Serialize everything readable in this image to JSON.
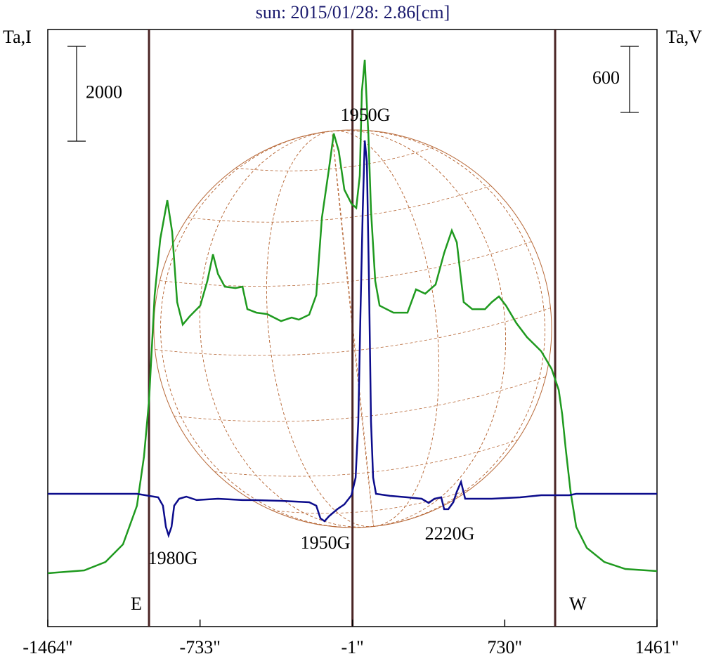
{
  "chart_data": {
    "type": "line",
    "title": "sun: 2015/01/28: 2.86[cm]",
    "y_label": "Ta,I",
    "y2_label": "Ta,V",
    "xlim": [
      -1464,
      1461
    ],
    "xticks": [
      {
        "value": -1464,
        "label": "-1464\""
      },
      {
        "value": -733,
        "label": "-733\""
      },
      {
        "value": -1,
        "label": "-1\""
      },
      {
        "value": 730,
        "label": "730\""
      },
      {
        "value": 1461,
        "label": "1461\""
      }
    ],
    "ylim": [
      0,
      12590
    ],
    "y2lim": [
      -1206,
      4217
    ],
    "scale_bars": [
      {
        "value": 2000,
        "axis": "y"
      },
      {
        "value": 600,
        "axis": "y2"
      }
    ],
    "vlines": [
      {
        "x": -978,
        "label": "E"
      },
      {
        "x": -1
      },
      {
        "x": 972,
        "label": "W"
      }
    ],
    "vline_color": "#4a2424",
    "annotations": [
      "1950G",
      "1980G",
      "1950G",
      "2220G"
    ],
    "series": [
      {
        "name": "I",
        "color": "#1f9a1f",
        "axis": "y",
        "x": [
          -1464,
          -1289,
          -1187,
          -1103,
          -1036,
          -1002,
          -978,
          -951,
          -924,
          -890,
          -867,
          -843,
          -816,
          -782,
          -732,
          -698,
          -671,
          -647,
          -614,
          -563,
          -529,
          -506,
          -462,
          -411,
          -344,
          -293,
          -259,
          -209,
          -175,
          -148,
          -114,
          -91,
          -67,
          -40,
          -6,
          17,
          34,
          44,
          58,
          68,
          75,
          88,
          108,
          129,
          196,
          263,
          304,
          348,
          398,
          439,
          476,
          500,
          533,
          574,
          635,
          668,
          702,
          736,
          786,
          837,
          905,
          955,
          989,
          1006,
          1023,
          1046,
          1073,
          1124,
          1208,
          1309,
          1461
        ],
        "values": [
          1126,
          1185,
          1363,
          1733,
          2547,
          3584,
          4769,
          6990,
          8175,
          8990,
          8323,
          6842,
          6368,
          6546,
          6768,
          7287,
          7849,
          7435,
          7168,
          7138,
          7168,
          6694,
          6620,
          6590,
          6442,
          6516,
          6472,
          6576,
          6990,
          8619,
          9656,
          10397,
          10026,
          9212,
          8916,
          8827,
          9508,
          11285,
          11952,
          10989,
          10397,
          8768,
          7287,
          6768,
          6620,
          6620,
          7109,
          7020,
          7212,
          7879,
          8353,
          8101,
          6842,
          6694,
          6694,
          6842,
          6961,
          6768,
          6398,
          6102,
          5806,
          5435,
          4991,
          4473,
          3732,
          2844,
          2103,
          1659,
          1363,
          1214,
          1170
        ]
      },
      {
        "name": "V",
        "color": "#0c0c8c",
        "axis": "y2",
        "x": [
          -1464,
          -1036,
          -978,
          -934,
          -911,
          -897,
          -884,
          -870,
          -857,
          -833,
          -799,
          -749,
          -647,
          -529,
          -479,
          -344,
          -209,
          -175,
          -155,
          -135,
          -114,
          -74,
          -40,
          -6,
          14,
          27,
          37,
          48,
          58,
          68,
          78,
          88,
          98,
          112,
          179,
          263,
          331,
          365,
          392,
          425,
          439,
          459,
          483,
          500,
          520,
          540,
          668,
          803,
          905,
          1040,
          1073,
          1461
        ],
        "values": [
          0,
          0,
          -19,
          -32,
          -108,
          -300,
          -377,
          -300,
          -108,
          -45,
          -26,
          -57,
          -45,
          -57,
          -57,
          -64,
          -77,
          -108,
          -223,
          -249,
          -204,
          -140,
          -96,
          -13,
          147,
          657,
          1614,
          2571,
          3209,
          3018,
          1933,
          657,
          147,
          0,
          -19,
          -32,
          -45,
          -83,
          -45,
          -32,
          -140,
          -140,
          -77,
          19,
          108,
          -45,
          -45,
          -32,
          -13,
          -13,
          0,
          0
        ]
      }
    ]
  }
}
